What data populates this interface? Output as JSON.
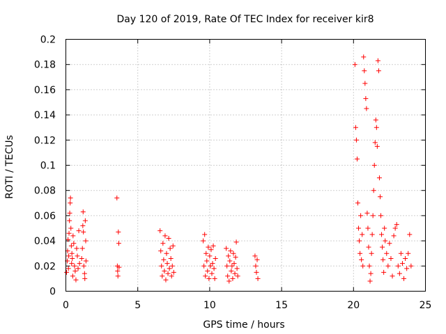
{
  "chart_data": {
    "type": "scatter",
    "title": "Day 120 of 2019, Rate Of TEC Index for receiver kir8",
    "xlabel": "GPS time / hours",
    "ylabel": "ROTI / TECUs",
    "xlim": [
      0,
      25
    ],
    "ylim": [
      0,
      0.2
    ],
    "x_ticks": [
      0,
      5,
      10,
      15,
      20,
      25
    ],
    "x_tick_labels": [
      "0",
      "5",
      "10",
      "15",
      "20",
      "25"
    ],
    "y_ticks": [
      0,
      0.02,
      0.04,
      0.06,
      0.08,
      0.1,
      0.12,
      0.14,
      0.16,
      0.18,
      0.2
    ],
    "y_tick_labels": [
      "0",
      "0.02",
      "0.04",
      "0.06",
      "0.08",
      "0.1",
      "0.12",
      "0.14",
      "0.16",
      "0.18",
      "0.2"
    ],
    "grid": true,
    "marker": "+",
    "marker_color": "#ff0000",
    "series": [
      {
        "name": "ROTI",
        "points": [
          [
            0.05,
            0.015
          ],
          [
            0.1,
            0.024
          ],
          [
            0.12,
            0.032
          ],
          [
            0.15,
            0.041
          ],
          [
            0.18,
            0.018
          ],
          [
            0.2,
            0.028
          ],
          [
            0.22,
            0.046
          ],
          [
            0.25,
            0.056
          ],
          [
            0.27,
            0.062
          ],
          [
            0.3,
            0.07
          ],
          [
            0.32,
            0.074
          ],
          [
            0.35,
            0.05
          ],
          [
            0.38,
            0.036
          ],
          [
            0.4,
            0.022
          ],
          [
            0.42,
            0.03
          ],
          [
            0.45,
            0.026
          ],
          [
            0.48,
            0.012
          ],
          [
            0.5,
            0.044
          ],
          [
            0.55,
            0.038
          ],
          [
            0.6,
            0.02
          ],
          [
            0.65,
            0.016
          ],
          [
            0.7,
            0.009
          ],
          [
            0.75,
            0.034
          ],
          [
            0.8,
            0.028
          ],
          [
            0.85,
            0.018
          ],
          [
            0.9,
            0.048
          ],
          [
            0.95,
            0.022
          ],
          [
            1.1,
            0.026
          ],
          [
            1.15,
            0.034
          ],
          [
            1.18,
            0.052
          ],
          [
            1.2,
            0.063
          ],
          [
            1.22,
            0.047
          ],
          [
            1.25,
            0.02
          ],
          [
            1.3,
            0.014
          ],
          [
            1.32,
            0.01
          ],
          [
            1.35,
            0.056
          ],
          [
            1.38,
            0.04
          ],
          [
            1.4,
            0.024
          ],
          [
            3.55,
            0.074
          ],
          [
            3.58,
            0.02
          ],
          [
            3.6,
            0.016
          ],
          [
            3.62,
            0.012
          ],
          [
            3.65,
            0.047
          ],
          [
            3.68,
            0.038
          ],
          [
            3.7,
            0.019
          ],
          [
            6.55,
            0.048
          ],
          [
            6.6,
            0.032
          ],
          [
            6.65,
            0.02
          ],
          [
            6.7,
            0.012
          ],
          [
            6.75,
            0.038
          ],
          [
            6.8,
            0.025
          ],
          [
            6.85,
            0.016
          ],
          [
            6.9,
            0.044
          ],
          [
            6.95,
            0.009
          ],
          [
            7.0,
            0.03
          ],
          [
            7.05,
            0.022
          ],
          [
            7.1,
            0.014
          ],
          [
            7.15,
            0.042
          ],
          [
            7.2,
            0.018
          ],
          [
            7.25,
            0.034
          ],
          [
            7.3,
            0.026
          ],
          [
            7.35,
            0.012
          ],
          [
            7.4,
            0.02
          ],
          [
            7.45,
            0.036
          ],
          [
            7.5,
            0.015
          ],
          [
            9.55,
            0.04
          ],
          [
            9.6,
            0.02
          ],
          [
            9.65,
            0.045
          ],
          [
            9.7,
            0.012
          ],
          [
            9.75,
            0.03
          ],
          [
            9.8,
            0.024
          ],
          [
            9.85,
            0.016
          ],
          [
            9.9,
            0.035
          ],
          [
            9.95,
            0.01
          ],
          [
            10.0,
            0.028
          ],
          [
            10.05,
            0.02
          ],
          [
            10.1,
            0.033
          ],
          [
            10.15,
            0.014
          ],
          [
            10.2,
            0.022
          ],
          [
            10.25,
            0.036
          ],
          [
            10.3,
            0.018
          ],
          [
            10.35,
            0.01
          ],
          [
            10.4,
            0.026
          ],
          [
            11.15,
            0.034
          ],
          [
            11.2,
            0.02
          ],
          [
            11.25,
            0.012
          ],
          [
            11.3,
            0.028
          ],
          [
            11.35,
            0.008
          ],
          [
            11.4,
            0.024
          ],
          [
            11.45,
            0.032
          ],
          [
            11.5,
            0.016
          ],
          [
            11.55,
            0.02
          ],
          [
            11.6,
            0.01
          ],
          [
            11.65,
            0.03
          ],
          [
            11.7,
            0.022
          ],
          [
            11.75,
            0.014
          ],
          [
            11.8,
            0.027
          ],
          [
            11.85,
            0.039
          ],
          [
            11.9,
            0.018
          ],
          [
            11.95,
            0.012
          ],
          [
            13.15,
            0.028
          ],
          [
            13.2,
            0.02
          ],
          [
            13.25,
            0.015
          ],
          [
            13.3,
            0.025
          ],
          [
            13.35,
            0.01
          ],
          [
            20.1,
            0.18
          ],
          [
            20.15,
            0.13
          ],
          [
            20.2,
            0.12
          ],
          [
            20.25,
            0.105
          ],
          [
            20.3,
            0.07
          ],
          [
            20.35,
            0.05
          ],
          [
            20.4,
            0.04
          ],
          [
            20.45,
            0.03
          ],
          [
            20.5,
            0.06
          ],
          [
            20.55,
            0.025
          ],
          [
            20.6,
            0.045
          ],
          [
            20.65,
            0.02
          ],
          [
            20.7,
            0.186
          ],
          [
            20.75,
            0.175
          ],
          [
            20.8,
            0.165
          ],
          [
            20.85,
            0.153
          ],
          [
            20.9,
            0.145
          ],
          [
            20.95,
            0.062
          ],
          [
            21.0,
            0.05
          ],
          [
            21.05,
            0.035
          ],
          [
            21.1,
            0.02
          ],
          [
            21.15,
            0.008
          ],
          [
            21.2,
            0.014
          ],
          [
            21.25,
            0.03
          ],
          [
            21.3,
            0.045
          ],
          [
            21.35,
            0.06
          ],
          [
            21.4,
            0.08
          ],
          [
            21.45,
            0.1
          ],
          [
            21.5,
            0.118
          ],
          [
            21.55,
            0.136
          ],
          [
            21.6,
            0.13
          ],
          [
            21.65,
            0.115
          ],
          [
            21.7,
            0.183
          ],
          [
            21.75,
            0.175
          ],
          [
            21.8,
            0.09
          ],
          [
            21.85,
            0.075
          ],
          [
            21.9,
            0.06
          ],
          [
            21.95,
            0.045
          ],
          [
            22.0,
            0.035
          ],
          [
            22.05,
            0.025
          ],
          [
            22.1,
            0.015
          ],
          [
            22.15,
            0.05
          ],
          [
            22.2,
            0.04
          ],
          [
            22.3,
            0.03
          ],
          [
            22.4,
            0.02
          ],
          [
            22.5,
            0.038
          ],
          [
            22.6,
            0.026
          ],
          [
            22.7,
            0.012
          ],
          [
            22.8,
            0.044
          ],
          [
            22.9,
            0.05
          ],
          [
            23.0,
            0.053
          ],
          [
            23.1,
            0.02
          ],
          [
            23.2,
            0.014
          ],
          [
            23.3,
            0.03
          ],
          [
            23.4,
            0.022
          ],
          [
            23.5,
            0.01
          ],
          [
            23.6,
            0.026
          ],
          [
            23.7,
            0.018
          ],
          [
            23.8,
            0.03
          ],
          [
            23.9,
            0.045
          ],
          [
            24.0,
            0.02
          ]
        ]
      }
    ]
  }
}
